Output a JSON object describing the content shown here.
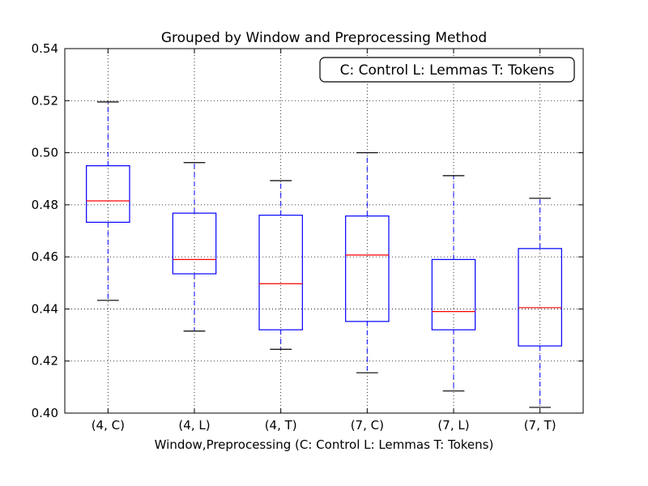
{
  "chart_data": {
    "type": "boxplot",
    "title": "Grouped by Window and Preprocessing Method",
    "xlabel": "Window,Preprocessing (C: Control L: Lemmas T: Tokens)",
    "ylabel": "",
    "ylim": [
      0.4,
      0.54
    ],
    "yticks": [
      "0.40",
      "0.42",
      "0.44",
      "0.46",
      "0.48",
      "0.50",
      "0.52",
      "0.54"
    ],
    "grid": true,
    "legend_text": "C: Control L: Lemmas T: Tokens",
    "legend_position": "top-right",
    "categories": [
      "(4, C)",
      "(4, L)",
      "(4, T)",
      "(7, C)",
      "(7, L)",
      "(7, T)"
    ],
    "boxes": [
      {
        "whisker_low": 0.4433,
        "q1": 0.4733,
        "median": 0.4815,
        "q3": 0.495,
        "whisker_high": 0.5195
      },
      {
        "whisker_low": 0.4315,
        "q1": 0.4535,
        "median": 0.459,
        "q3": 0.4768,
        "whisker_high": 0.4962
      },
      {
        "whisker_low": 0.4245,
        "q1": 0.432,
        "median": 0.4497,
        "q3": 0.476,
        "whisker_high": 0.4893
      },
      {
        "whisker_low": 0.4155,
        "q1": 0.4352,
        "median": 0.4607,
        "q3": 0.4757,
        "whisker_high": 0.5
      },
      {
        "whisker_low": 0.4085,
        "q1": 0.432,
        "median": 0.439,
        "q3": 0.459,
        "whisker_high": 0.4912
      },
      {
        "whisker_low": 0.4022,
        "q1": 0.4258,
        "median": 0.4405,
        "q3": 0.4632,
        "whisker_high": 0.4825
      }
    ],
    "colors": {
      "box": "#0000ff",
      "median": "#ff0000",
      "whisker": "#0000ff",
      "cap": "#000000",
      "grid": "#000000"
    }
  }
}
